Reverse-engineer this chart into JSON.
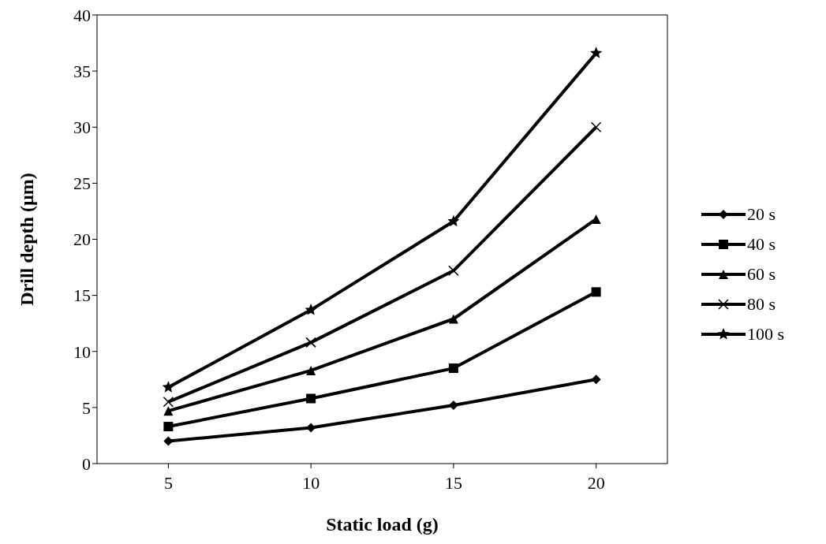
{
  "chart_data": {
    "type": "line",
    "xlabel": "Static load (g)",
    "ylabel": "Drill depth (µm)",
    "categories": [
      "5",
      "10",
      "15",
      "20"
    ],
    "ylim": [
      0,
      40
    ],
    "yticks": [
      0,
      5,
      10,
      15,
      20,
      25,
      30,
      35,
      40
    ],
    "grid": false,
    "legend": "right",
    "line_style": "solid",
    "series": [
      {
        "name": "20 s",
        "color": "#000000",
        "marker": "diamond",
        "values": [
          2.0,
          3.2,
          5.2,
          7.5
        ]
      },
      {
        "name": "40 s",
        "color": "#000000",
        "marker": "square",
        "values": [
          3.3,
          5.8,
          8.5,
          15.3
        ]
      },
      {
        "name": "60 s",
        "color": "#000000",
        "marker": "triangle",
        "values": [
          4.7,
          8.3,
          12.9,
          21.8
        ]
      },
      {
        "name": "80 s",
        "color": "#000000",
        "marker": "cross",
        "values": [
          5.5,
          10.8,
          17.2,
          30.0
        ]
      },
      {
        "name": "100 s",
        "color": "#000000",
        "marker": "star",
        "values": [
          6.8,
          13.7,
          21.6,
          36.6
        ]
      }
    ]
  }
}
